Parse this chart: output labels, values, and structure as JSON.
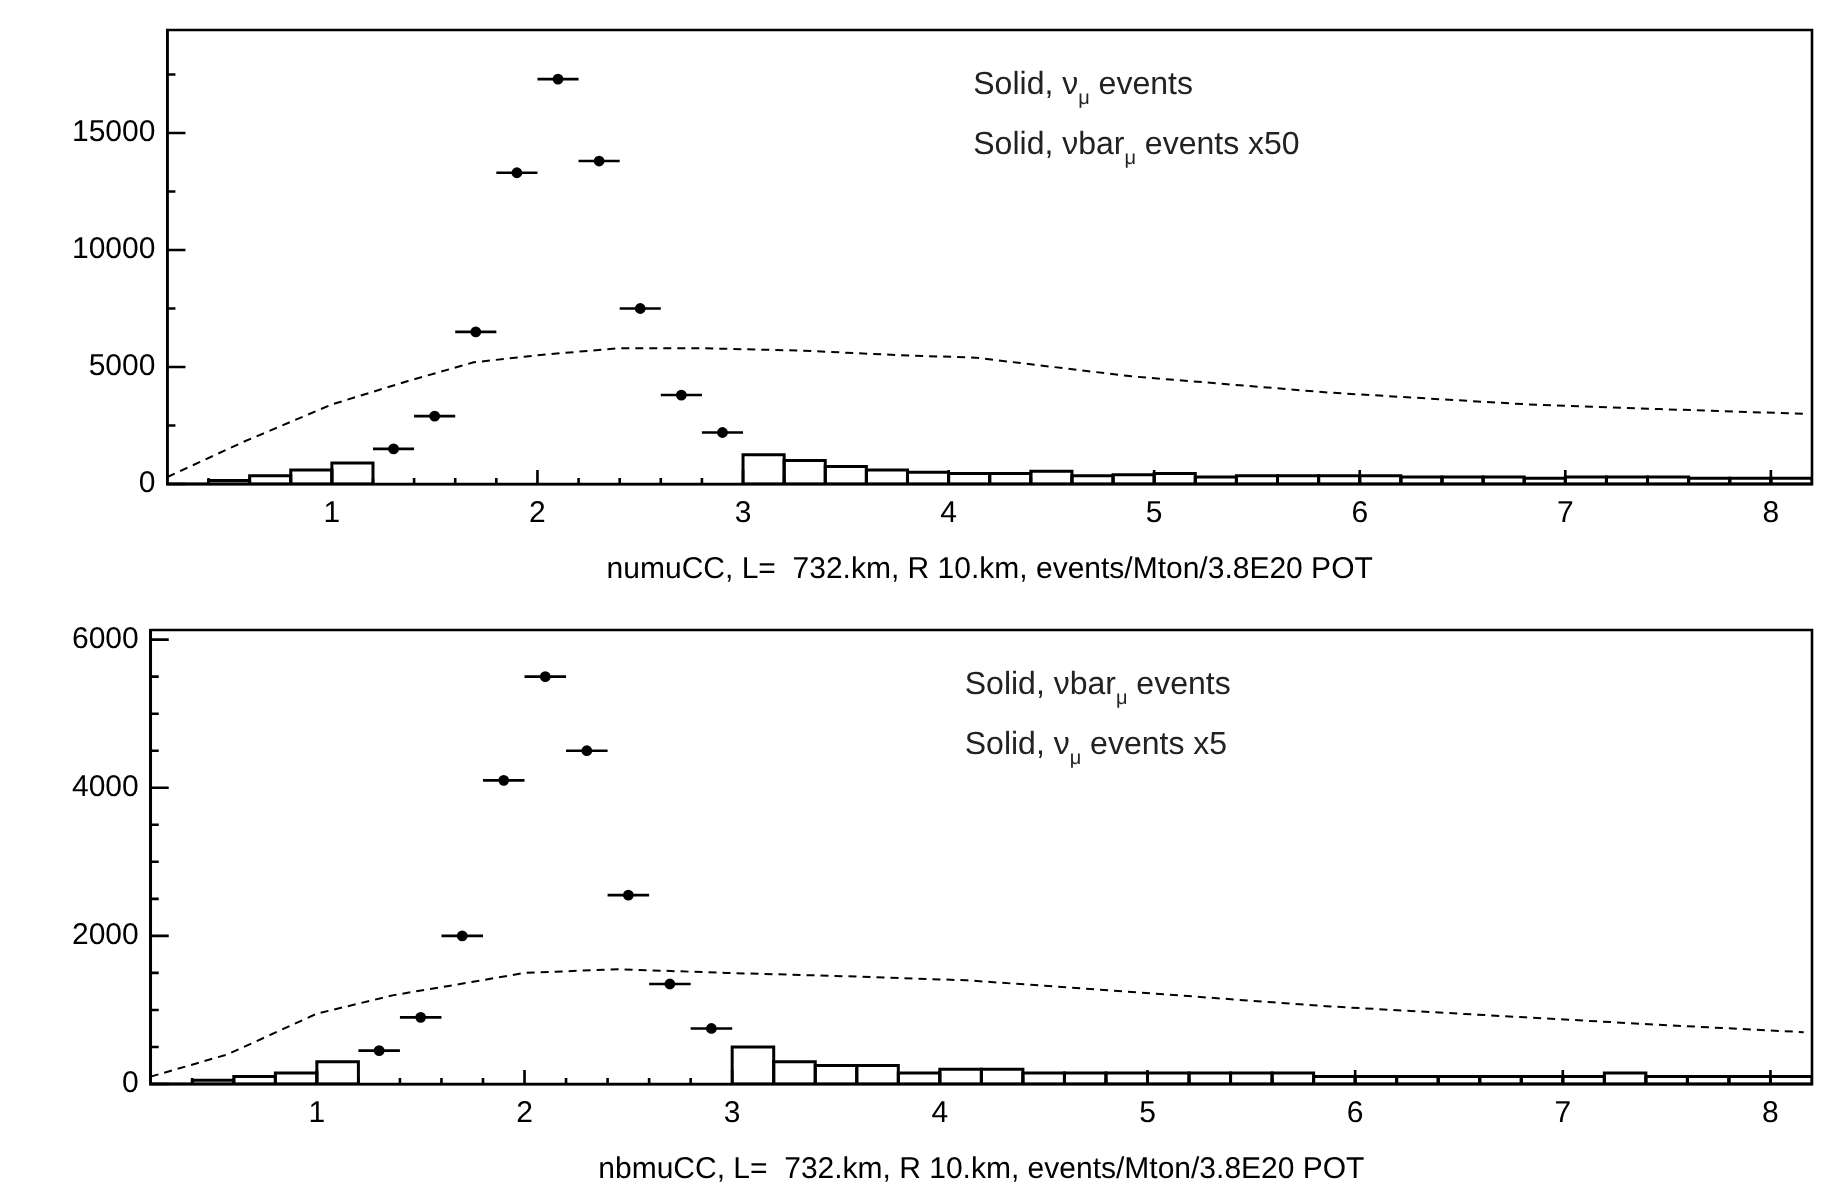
{
  "chart_data": [
    {
      "type": "histogram",
      "xlabel": "numuCC, L=  732.km, R 10.km, events/Mton/3.8E20 POT",
      "annotations": [
        "Solid, ν$_{μ}$ events",
        "Solid, νbar$_{μ}$ events x50"
      ],
      "xlim": [
        0.2,
        8.2
      ],
      "ylim": [
        0,
        19400
      ],
      "xticks": [
        {
          "value": 0.4,
          "label": null
        },
        {
          "value": 0.6,
          "label": null
        },
        {
          "value": 0.8,
          "label": null
        },
        1,
        {
          "value": 1.2,
          "label": null
        },
        {
          "value": 1.4,
          "label": null
        },
        {
          "value": 1.6,
          "label": null
        },
        {
          "value": 1.8,
          "label": null
        },
        2,
        {
          "value": 2.2,
          "label": null
        },
        {
          "value": 2.4,
          "label": null
        },
        {
          "value": 2.6,
          "label": null
        },
        {
          "value": 2.8,
          "label": null
        },
        3,
        {
          "value": 3.2,
          "label": null
        },
        {
          "value": 3.4,
          "label": null
        },
        {
          "value": 3.6,
          "label": null
        },
        {
          "value": 3.8,
          "label": null
        },
        4,
        {
          "value": 4.2,
          "label": null
        },
        {
          "value": 4.4,
          "label": null
        },
        {
          "value": 4.6,
          "label": null
        },
        {
          "value": 4.8,
          "label": null
        },
        5,
        {
          "value": 5.2,
          "label": null
        },
        {
          "value": 5.4,
          "label": null
        },
        {
          "value": 5.6,
          "label": null
        },
        {
          "value": 5.8,
          "label": null
        },
        6,
        {
          "value": 6.2,
          "label": null
        },
        {
          "value": 6.4,
          "label": null
        },
        {
          "value": 6.6,
          "label": null
        },
        {
          "value": 6.8,
          "label": null
        },
        7,
        {
          "value": 7.2,
          "label": null
        },
        {
          "value": 7.4,
          "label": null
        },
        {
          "value": 7.6,
          "label": null
        },
        {
          "value": 7.8,
          "label": null
        },
        8
      ],
      "yticks": [
        0,
        {
          "value": 2500,
          "label": null
        },
        5000,
        {
          "value": 7500,
          "label": null
        },
        10000,
        {
          "value": 12500,
          "label": null
        },
        15000,
        {
          "value": 17500,
          "label": null
        }
      ],
      "bins": [
        0.2,
        0.4,
        0.6,
        0.8,
        1.0,
        1.2,
        1.4,
        1.6,
        1.8,
        2.0,
        2.2,
        2.4,
        2.6,
        2.8,
        3.0,
        3.2,
        3.4,
        3.6,
        3.8,
        4.0,
        4.2,
        4.4,
        4.6,
        4.8,
        5.0,
        5.2,
        5.4,
        5.6,
        5.8,
        6.0,
        6.2,
        6.4,
        6.6,
        6.8,
        7.0,
        7.2,
        7.4,
        7.6,
        7.8,
        8.0,
        8.2
      ],
      "series": [
        {
          "color": "#000000",
          "values": [
            0,
            150,
            350,
            600,
            900,
            null,
            null,
            null,
            null,
            null,
            null,
            null,
            null,
            null,
            1250,
            1000,
            750,
            600,
            500,
            450,
            450,
            550,
            350,
            400,
            450,
            300,
            350,
            350,
            350,
            350,
            300,
            300,
            300,
            250,
            300,
            300,
            300,
            250,
            250,
            250
          ]
        },
        {
          "type": "scatter",
          "marker": "circle",
          "color": "#000000",
          "x": [
            1.3,
            1.5,
            1.7,
            1.9,
            2.1,
            2.3,
            2.5,
            2.7,
            2.9
          ],
          "values": [
            1500,
            2900,
            6500,
            13300,
            17300,
            13800,
            7500,
            3800,
            2200
          ],
          "xerrors": [
            0.1,
            0.1,
            0.1,
            0.1,
            0.1,
            0.1,
            0.1,
            0.1,
            0.1
          ]
        },
        {
          "type": "line",
          "color": "#000000",
          "line_style": "dashed",
          "x": [
            0.2,
            0.57,
            1.0,
            1.37,
            1.69,
            2.0,
            2.39,
            2.81,
            3.29,
            3.77,
            4.13,
            4.89,
            5.86,
            6.82,
            7.46,
            8.16
          ],
          "values": [
            300,
            1800,
            3400,
            4400,
            5200,
            5500,
            5800,
            5800,
            5700,
            5500,
            5400,
            4600,
            3900,
            3400,
            3200,
            3000
          ]
        }
      ]
    },
    {
      "type": "histogram",
      "xlabel": "nbmuCC, L=  732.km, R 10.km, events/Mton/3.8E20 POT",
      "annotations": [
        "Solid, νbar$_{μ}$ events",
        "Solid, ν$_{μ}$ events x5"
      ],
      "xlim": [
        0.2,
        8.2
      ],
      "ylim": [
        0,
        6130
      ],
      "xticks": [
        {
          "value": 0.4,
          "label": null
        },
        {
          "value": 0.6,
          "label": null
        },
        {
          "value": 0.8,
          "label": null
        },
        1,
        {
          "value": 1.2,
          "label": null
        },
        {
          "value": 1.4,
          "label": null
        },
        {
          "value": 1.6,
          "label": null
        },
        {
          "value": 1.8,
          "label": null
        },
        2,
        {
          "value": 2.2,
          "label": null
        },
        {
          "value": 2.4,
          "label": null
        },
        {
          "value": 2.6,
          "label": null
        },
        {
          "value": 2.8,
          "label": null
        },
        3,
        {
          "value": 3.2,
          "label": null
        },
        {
          "value": 3.4,
          "label": null
        },
        {
          "value": 3.6,
          "label": null
        },
        {
          "value": 3.8,
          "label": null
        },
        4,
        {
          "value": 4.2,
          "label": null
        },
        {
          "value": 4.4,
          "label": null
        },
        {
          "value": 4.6,
          "label": null
        },
        {
          "value": 4.8,
          "label": null
        },
        5,
        {
          "value": 5.2,
          "label": null
        },
        {
          "value": 5.4,
          "label": null
        },
        {
          "value": 5.6,
          "label": null
        },
        {
          "value": 5.8,
          "label": null
        },
        6,
        {
          "value": 6.2,
          "label": null
        },
        {
          "value": 6.4,
          "label": null
        },
        {
          "value": 6.6,
          "label": null
        },
        {
          "value": 6.8,
          "label": null
        },
        7,
        {
          "value": 7.2,
          "label": null
        },
        {
          "value": 7.4,
          "label": null
        },
        {
          "value": 7.6,
          "label": null
        },
        {
          "value": 7.8,
          "label": null
        },
        8
      ],
      "yticks": [
        0,
        {
          "value": 500,
          "label": null
        },
        {
          "value": 1000,
          "label": null
        },
        {
          "value": 1500,
          "label": null
        },
        2000,
        {
          "value": 2500,
          "label": null
        },
        {
          "value": 3000,
          "label": null
        },
        {
          "value": 3500,
          "label": null
        },
        4000,
        {
          "value": 4500,
          "label": null
        },
        {
          "value": 5000,
          "label": null
        },
        {
          "value": 5500,
          "label": null
        },
        6000
      ],
      "bins": [
        0.2,
        0.4,
        0.6,
        0.8,
        1.0,
        1.2,
        1.4,
        1.6,
        1.8,
        2.0,
        2.2,
        2.4,
        2.6,
        2.8,
        3.0,
        3.2,
        3.4,
        3.6,
        3.8,
        4.0,
        4.2,
        4.4,
        4.6,
        4.8,
        5.0,
        5.2,
        5.4,
        5.6,
        5.8,
        6.0,
        6.2,
        6.4,
        6.6,
        6.8,
        7.0,
        7.2,
        7.4,
        7.6,
        7.8,
        8.0,
        8.2
      ],
      "series": [
        {
          "color": "#000000",
          "values": [
            0,
            50,
            100,
            150,
            300,
            null,
            null,
            null,
            null,
            null,
            null,
            null,
            null,
            null,
            500,
            300,
            250,
            250,
            150,
            200,
            200,
            150,
            150,
            150,
            150,
            150,
            150,
            150,
            100,
            100,
            100,
            100,
            100,
            100,
            100,
            150,
            100,
            100,
            100,
            100
          ]
        },
        {
          "type": "scatter",
          "marker": "circle",
          "color": "#000000",
          "x": [
            1.3,
            1.5,
            1.7,
            1.9,
            2.1,
            2.3,
            2.5,
            2.7,
            2.9
          ],
          "values": [
            450,
            900,
            2000,
            4100,
            5500,
            4500,
            2550,
            1350,
            750
          ],
          "xerrors": [
            0.1,
            0.1,
            0.1,
            0.1,
            0.1,
            0.1,
            0.1,
            0.1,
            0.1
          ]
        },
        {
          "type": "line",
          "color": "#000000",
          "line_style": "dashed",
          "x": [
            0.2,
            0.57,
            1.0,
            1.37,
            1.69,
            2.0,
            2.45,
            2.97,
            3.61,
            4.13,
            4.89,
            5.86,
            6.82,
            7.46,
            8.16
          ],
          "values": [
            100,
            400,
            950,
            1200,
            1350,
            1500,
            1550,
            1500,
            1450,
            1400,
            1250,
            1050,
            900,
            800,
            700
          ]
        }
      ]
    }
  ]
}
